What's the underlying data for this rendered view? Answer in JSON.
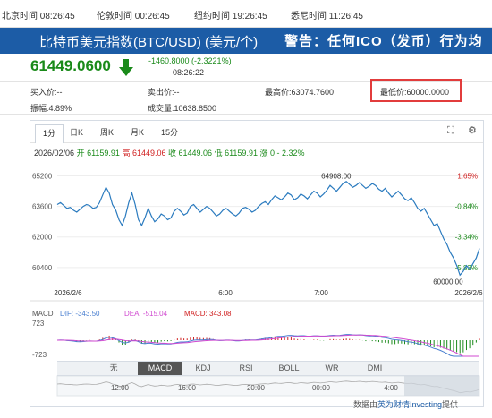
{
  "time_bar": {
    "beijing": "北京时间 08:26:45",
    "london": "伦敦时间 00:26:45",
    "newyork": "纽约时间 19:26:45",
    "sydney": "悉尼时间 11:26:45"
  },
  "header": {
    "title": "比特币美元指数(BTC/USD) (美元/个)",
    "warning": "警告：任何ICO（发币）行为均"
  },
  "quote": {
    "price": "61449.0600",
    "change": "-1460.8000 (-2.3221%)",
    "time": "08:26:22"
  },
  "stats": {
    "buy": "买入价:--",
    "sell": "卖出价:--",
    "high": "最高价:63074.7600",
    "low": "最低价:60000.0000",
    "amplitude": "振幅:4.89%",
    "volume": "成交量:10638.8500"
  },
  "tabs": [
    "1分",
    "日K",
    "周K",
    "月K",
    "15分"
  ],
  "ohlc": {
    "date": "2026/02/06",
    "open": "开 61159.91",
    "high": "高 61449.06",
    "low": "收 61449.06",
    "close": "低 61159.91",
    "change": "涨 0 - 2.32%"
  },
  "chart_data": {
    "type": "line",
    "y_ticks": [
      "65200",
      "63600",
      "62000",
      "60400"
    ],
    "pct_ticks": [
      "1.65%",
      "-0.84%",
      "-3.34%",
      "-5.83%"
    ],
    "x_ticks": [
      "2026/2/6",
      "6:00",
      "7:00",
      "2026/2/6"
    ],
    "ylim": [
      59500,
      65600
    ],
    "annotations": {
      "max_label": "64908.00",
      "min_label": "60000.00"
    },
    "values": [
      63700,
      63800,
      63650,
      63500,
      63550,
      63400,
      63300,
      63450,
      63600,
      63700,
      63650,
      63500,
      63550,
      63800,
      64200,
      64600,
      64300,
      63700,
      63400,
      62900,
      62600,
      63100,
      63800,
      64300,
      63700,
      62900,
      62600,
      63000,
      63500,
      63100,
      62800,
      62950,
      63200,
      63100,
      62900,
      63000,
      63350,
      63500,
      63350,
      63150,
      63250,
      63600,
      63700,
      63500,
      63300,
      63450,
      63600,
      63500,
      63300,
      63100,
      63200,
      63400,
      63500,
      63350,
      63200,
      63100,
      63250,
      63500,
      63550,
      63450,
      63300,
      63400,
      63600,
      63750,
      63850,
      63700,
      63950,
      64150,
      64050,
      63950,
      64100,
      64300,
      64200,
      63950,
      64050,
      64250,
      64150,
      64000,
      64200,
      64400,
      64300,
      64100,
      64250,
      64450,
      64700,
      64550,
      64400,
      64600,
      64800,
      64908,
      64750,
      64600,
      64700,
      64850,
      64700,
      64550,
      64650,
      64800,
      64700,
      64500,
      64400,
      64550,
      64300,
      64100,
      64250,
      64400,
      64200,
      64000,
      63900,
      64050,
      63800,
      63500,
      63350,
      63500,
      63200,
      62900,
      62600,
      62700,
      62300,
      61900,
      61600,
      61200,
      60900,
      60500,
      60000,
      60200,
      60500,
      60300,
      60600,
      60900,
      61400
    ]
  },
  "macd": {
    "label": "MACD",
    "dif": "DIF: -343.50",
    "dea": "DEA: -515.04",
    "macd": "MACD: 343.08",
    "ytop": "723",
    "ybottom": "-723"
  },
  "indicators": [
    "无",
    "MACD",
    "KDJ",
    "RSI",
    "BOLL",
    "WR",
    "DMI"
  ],
  "nav_times": [
    "12:00",
    "16:00",
    "20:00",
    "00:00",
    "4:00"
  ],
  "footer": {
    "prefix": "数据由",
    "link": "英为财情Investing",
    "suffix": "提供"
  },
  "colors": {
    "price_green": "#1a8a1a",
    "line_blue": "#2b7bbf",
    "title_bg": "#1c5ca6",
    "highlight": "#e23c3c"
  }
}
